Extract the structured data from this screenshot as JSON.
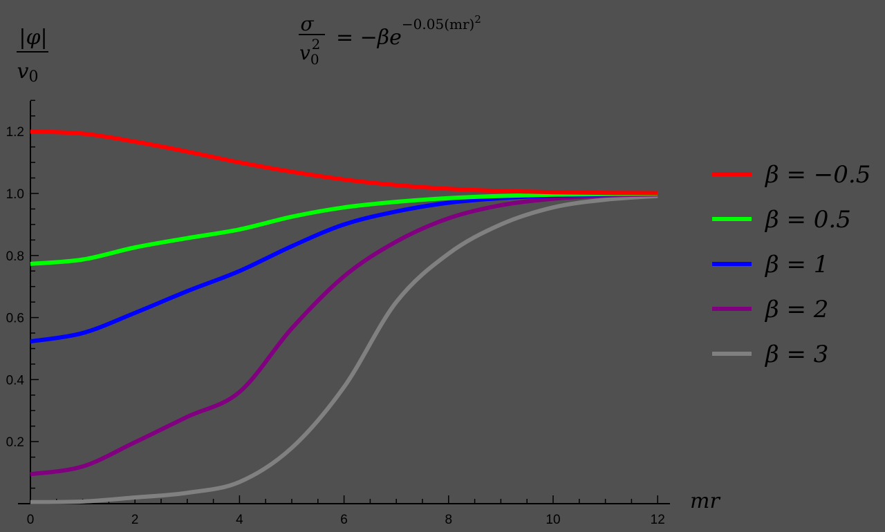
{
  "chart_data": {
    "type": "line",
    "title": "σ / v0² = −β e^(−0.05 (mr)²)",
    "title_parts": {
      "numerator": "σ",
      "denominator_base": "v",
      "denominator_sub": "0",
      "denominator_sup": "2",
      "rhs": "= −βe",
      "exponent": "−0.05(mr)",
      "exponent_sup": "2"
    },
    "xlabel": "mr",
    "ylabel": "|φ| / v0",
    "ylabel_parts": {
      "numerator": "|φ|",
      "denominator_base": "v",
      "denominator_sub": "0"
    },
    "xlim": [
      0,
      12
    ],
    "ylim": [
      0,
      1.3
    ],
    "grid": false,
    "legend_position": "right",
    "x_ticks": [
      0,
      2,
      4,
      6,
      8,
      10,
      12
    ],
    "x_tick_labels": [
      "0",
      "2",
      "4",
      "6",
      "8",
      "10",
      "12"
    ],
    "y_ticks": [
      0.2,
      0.4,
      0.6,
      0.8,
      1.0,
      1.2
    ],
    "y_tick_labels": [
      "0.2",
      "0.4",
      "0.6",
      "0.8",
      "1.0",
      "1.2"
    ],
    "x": [
      0,
      1,
      2,
      3,
      4,
      5,
      6,
      7,
      8,
      9,
      10,
      11,
      12
    ],
    "series": [
      {
        "name": "β = −0.5",
        "label": "β = −0.5",
        "color": "#ff0000",
        "values": [
          1.2,
          1.193,
          1.167,
          1.135,
          1.1,
          1.07,
          1.045,
          1.027,
          1.015,
          1.008,
          1.004,
          1.002,
          1.001
        ]
      },
      {
        "name": "β = 0.5",
        "label": "β = 0.5",
        "color": "#00ff00",
        "values": [
          0.773,
          0.787,
          0.826,
          0.856,
          0.884,
          0.925,
          0.955,
          0.973,
          0.985,
          0.992,
          0.996,
          0.998,
          0.999
        ]
      },
      {
        "name": "β = 1",
        "label": "β = 1",
        "color": "#0000ff",
        "values": [
          0.523,
          0.55,
          0.615,
          0.685,
          0.75,
          0.83,
          0.9,
          0.942,
          0.97,
          0.985,
          0.993,
          0.997,
          0.999
        ]
      },
      {
        "name": "β = 2",
        "label": "β = 2",
        "color": "#800080",
        "values": [
          0.095,
          0.12,
          0.198,
          0.28,
          0.36,
          0.565,
          0.733,
          0.845,
          0.92,
          0.962,
          0.983,
          0.993,
          0.997
        ]
      },
      {
        "name": "β = 3",
        "label": "β = 3",
        "color": "#808080",
        "values": [
          0.005,
          0.007,
          0.02,
          0.035,
          0.07,
          0.18,
          0.376,
          0.65,
          0.806,
          0.9,
          0.955,
          0.98,
          0.992
        ]
      }
    ]
  }
}
